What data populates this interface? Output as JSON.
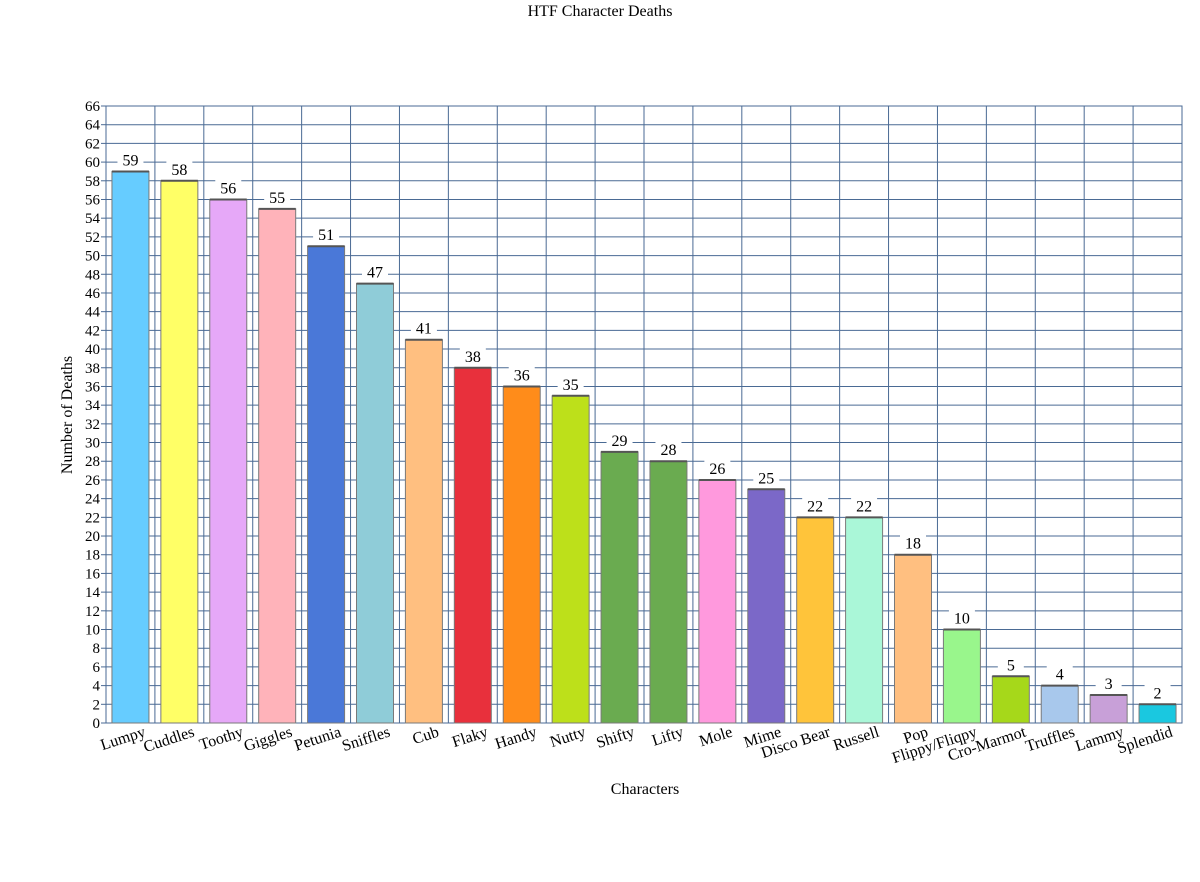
{
  "chart_data": {
    "type": "bar",
    "title": "HTF Character Deaths",
    "xlabel": "Characters",
    "ylabel": "Number of Deaths",
    "ylim": [
      0,
      66
    ],
    "ytick_step": 2,
    "grid": true,
    "legend": "none",
    "categories": [
      "Lumpy",
      "Cuddles",
      "Toothy",
      "Giggles",
      "Petunia",
      "Sniffles",
      "Cub",
      "Flaky",
      "Handy",
      "Nutty",
      "Shifty",
      "Lifty",
      "Mole",
      "Mime",
      "Disco Bear",
      "Russell",
      "Pop",
      "Flippy/Fliqpy",
      "Cro-Marmot",
      "Truffles",
      "Lammy",
      "Splendid"
    ],
    "values": [
      59,
      58,
      56,
      55,
      51,
      47,
      41,
      38,
      36,
      35,
      29,
      28,
      26,
      25,
      22,
      22,
      18,
      10,
      5,
      4,
      3,
      2
    ],
    "colors": [
      "#66ccff",
      "#ffff66",
      "#e6a8f8",
      "#ffb3ba",
      "#4a78d8",
      "#8fccd8",
      "#ffbf80",
      "#e8303c",
      "#ff8c1a",
      "#bde01a",
      "#6aab50",
      "#6aab50",
      "#ff99dd",
      "#7b68c8",
      "#ffc43a",
      "#aaf7d8",
      "#ffbf80",
      "#99f68c",
      "#a6d81a",
      "#a8c8ec",
      "#c8a0d8",
      "#1ac8e0"
    ]
  }
}
